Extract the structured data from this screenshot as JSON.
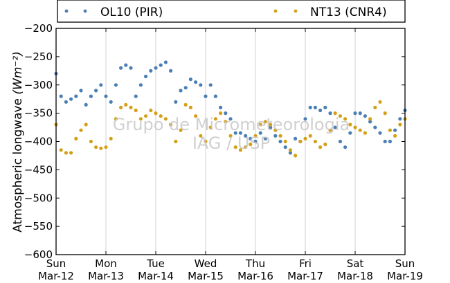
{
  "chart_data": {
    "type": "scatter",
    "ylabel": "Atmospheric longwave",
    "ylabel_unit": "(Wm⁻²)",
    "ylim": [
      -600,
      -200
    ],
    "yticks": [
      "−200",
      "−250",
      "−300",
      "−350",
      "−400",
      "−450",
      "−500",
      "−550",
      "−600"
    ],
    "x_range": [
      "2017-03-12",
      "2017-03-19"
    ],
    "xticks": [
      {
        "day": "Sun",
        "date": "Mar-12"
      },
      {
        "day": "Mon",
        "date": "Mar-13"
      },
      {
        "day": "Tue",
        "date": "Mar-14"
      },
      {
        "day": "Wed",
        "date": "Mar-15"
      },
      {
        "day": "Thu",
        "date": "Mar-16"
      },
      {
        "day": "Fri",
        "date": "Mar-17"
      },
      {
        "day": "Sat",
        "date": "Mar-18"
      },
      {
        "day": "Sun",
        "date": "Mar-19"
      }
    ],
    "grid": "vertical",
    "legend_position": "top",
    "watermark": [
      "Grupo de Micrometeorologia",
      "IAG / USP"
    ],
    "series": [
      {
        "name": "OL10 (PIR)",
        "color": "#4a7fb5",
        "x_days": [
          0.0,
          0.1,
          0.2,
          0.3,
          0.4,
          0.5,
          0.6,
          0.7,
          0.8,
          0.9,
          1.0,
          1.1,
          1.2,
          1.3,
          1.4,
          1.5,
          1.6,
          1.7,
          1.8,
          1.9,
          2.0,
          2.1,
          2.2,
          2.3,
          2.4,
          2.5,
          2.6,
          2.7,
          2.8,
          2.9,
          3.0,
          3.1,
          3.2,
          3.3,
          3.4,
          3.5,
          3.6,
          3.7,
          3.8,
          3.9,
          4.0,
          4.1,
          4.2,
          4.3,
          4.4,
          4.5,
          4.6,
          4.7,
          4.8,
          4.9,
          5.0,
          5.1,
          5.2,
          5.3,
          5.4,
          5.5,
          5.6,
          5.7,
          5.8,
          5.9,
          6.0,
          6.1,
          6.2,
          6.3,
          6.4,
          6.5,
          6.6,
          6.7,
          6.8,
          6.9,
          7.0
        ],
        "values": [
          -280,
          -320,
          -330,
          -325,
          -320,
          -310,
          -335,
          -320,
          -310,
          -300,
          -320,
          -330,
          -300,
          -270,
          -265,
          -270,
          -320,
          -300,
          -285,
          -275,
          -270,
          -265,
          -260,
          -275,
          -330,
          -310,
          -305,
          -290,
          -295,
          -300,
          -320,
          -300,
          -320,
          -340,
          -350,
          -360,
          -385,
          -385,
          -390,
          -395,
          -400,
          -385,
          -395,
          -375,
          -390,
          -400,
          -410,
          -420,
          -395,
          -400,
          -360,
          -340,
          -340,
          -345,
          -340,
          -350,
          -375,
          -400,
          -410,
          -385,
          -350,
          -350,
          -355,
          -365,
          -375,
          -385,
          -400,
          -400,
          -380,
          -360,
          -345
        ]
      },
      {
        "name": "NT13 (CNR4)",
        "color": "#d4a017",
        "x_days": [
          0.0,
          0.1,
          0.2,
          0.3,
          0.4,
          0.5,
          0.6,
          0.7,
          0.8,
          0.9,
          1.0,
          1.1,
          1.2,
          1.3,
          1.4,
          1.5,
          1.6,
          1.7,
          1.8,
          1.9,
          2.0,
          2.1,
          2.2,
          2.3,
          2.4,
          2.5,
          2.6,
          2.7,
          2.8,
          2.9,
          3.0,
          3.1,
          3.2,
          3.3,
          3.4,
          3.5,
          3.6,
          3.7,
          3.8,
          3.9,
          4.0,
          4.1,
          4.2,
          4.3,
          4.4,
          4.5,
          4.6,
          4.7,
          4.8,
          4.9,
          5.0,
          5.1,
          5.2,
          5.3,
          5.4,
          5.5,
          5.6,
          5.7,
          5.8,
          5.9,
          6.0,
          6.1,
          6.2,
          6.3,
          6.4,
          6.5,
          6.6,
          6.7,
          6.8,
          6.9,
          7.0
        ],
        "values": [
          -370,
          -415,
          -420,
          -420,
          -395,
          -380,
          -370,
          -400,
          -410,
          -412,
          -410,
          -395,
          -360,
          -340,
          -335,
          -340,
          -345,
          -360,
          -355,
          -345,
          -350,
          -355,
          -360,
          -370,
          -400,
          -380,
          -335,
          -340,
          -355,
          -390,
          -400,
          -375,
          -360,
          -350,
          -365,
          -390,
          -410,
          -415,
          -410,
          -405,
          -390,
          -370,
          -365,
          -370,
          -380,
          -390,
          -400,
          -415,
          -425,
          -400,
          -395,
          -390,
          -400,
          -410,
          -405,
          -380,
          -350,
          -355,
          -360,
          -370,
          -375,
          -380,
          -385,
          -360,
          -340,
          -330,
          -350,
          -380,
          -390,
          -370,
          -360
        ]
      }
    ]
  }
}
